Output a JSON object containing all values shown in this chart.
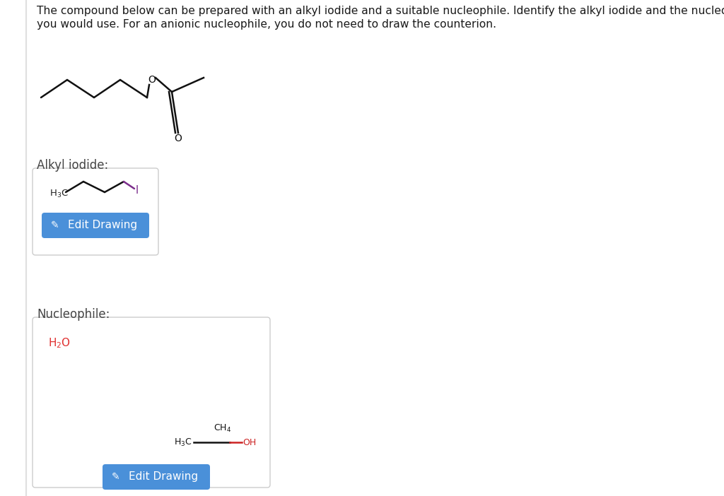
{
  "background_color": "#ffffff",
  "title_line1": "The compound below can be prepared with an alkyl iodide and a suitable nucleophile. Identify the alkyl iodide and the nucleophile that",
  "title_line2": "you would use. For an anionic nucleophile, you do not need to draw the counterion.",
  "title_fontsize": 11.2,
  "title_color": "#1a1a1a",
  "alkyl_iodide_label": "Alkyl iodide:",
  "nucleophile_label": "Nucleophile:",
  "label_fontsize": 12,
  "label_color": "#444444",
  "button_color": "#4a90d9",
  "button_text": "Edit Drawing",
  "button_text_color": "#ffffff",
  "button_fontsize": 11,
  "h3c_color": "#222222",
  "h2o_color": "#e03030",
  "i_color": "#7b2d8b",
  "oh_color": "#cc2222",
  "ch4_color": "#111111",
  "h3c_formula_color": "#111111",
  "box_border": "#cccccc",
  "line_color_black": "#111111",
  "line_color_red": "#cc2222",
  "left_border_color": "#e0e0e0"
}
